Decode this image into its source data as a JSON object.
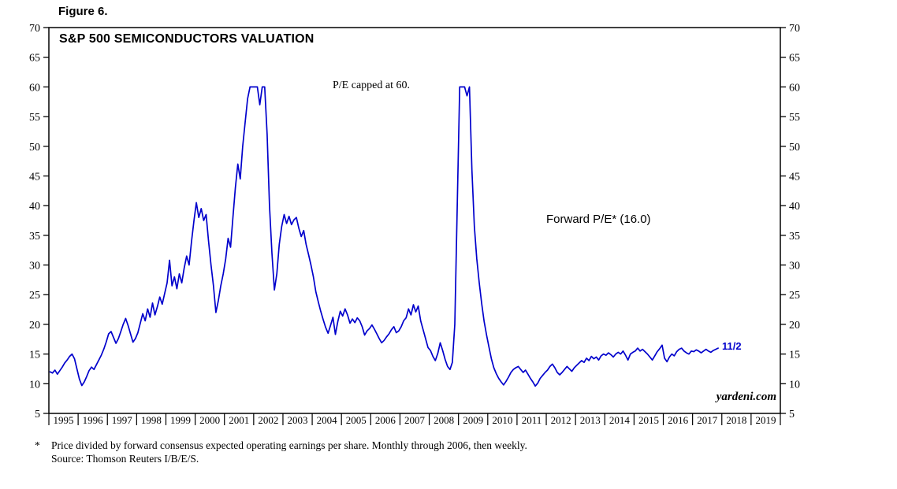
{
  "figure_label": "Figure 6.",
  "chart_title": "S&P 500 SEMICONDUCTORS VALUATION",
  "annotations": {
    "pe_cap": "P/E capped at 60.",
    "series_label": "Forward P/E* (16.0)",
    "latest_point": "11/2",
    "watermark": "yardeni.com"
  },
  "footnote": {
    "marker": "*",
    "line1": "Price divided by forward consensus expected operating earnings per share. Monthly through 2006, then weekly.",
    "line2": "Source: Thomson Reuters I/B/E/S."
  },
  "colors": {
    "line": "#0000cc",
    "latest_label": "#0000cc",
    "axis": "#000000",
    "background": "#ffffff"
  },
  "chart_data": {
    "type": "line",
    "title": "S&P 500 SEMICONDUCTORS VALUATION",
    "series_name": "Forward P/E",
    "latest_value": 16.0,
    "latest_date_label": "11/2",
    "pe_cap": 60,
    "ylim": [
      5,
      70
    ],
    "xlim": [
      1995,
      2020
    ],
    "y_ticks": [
      5,
      10,
      15,
      20,
      25,
      30,
      35,
      40,
      45,
      50,
      55,
      60,
      65,
      70
    ],
    "x_tick_labels": [
      "1995",
      "1996",
      "1997",
      "1998",
      "1999",
      "2000",
      "2001",
      "2002",
      "2003",
      "2004",
      "2005",
      "2006",
      "2007",
      "2008",
      "2009",
      "2010",
      "2011",
      "2012",
      "2013",
      "2014",
      "2015",
      "2016",
      "2017",
      "2018",
      "2019"
    ],
    "frequency": "monthly estimates read from plot, values capped at 60",
    "x_start_year": 1995,
    "values": [
      12.0,
      11.8,
      12.3,
      11.6,
      12.2,
      12.8,
      13.5,
      14.0,
      14.6,
      15.0,
      14.2,
      12.5,
      10.8,
      9.7,
      10.3,
      11.2,
      12.2,
      12.8,
      12.4,
      13.2,
      14.0,
      14.8,
      15.8,
      17.0,
      18.4,
      18.8,
      17.8,
      16.8,
      17.6,
      18.8,
      20.0,
      21.0,
      19.8,
      18.4,
      17.0,
      17.6,
      18.6,
      20.2,
      21.8,
      20.6,
      22.6,
      21.2,
      23.6,
      21.6,
      23.0,
      24.6,
      23.4,
      25.2,
      27.0,
      30.8,
      26.5,
      28.0,
      26.0,
      28.5,
      27.0,
      29.5,
      31.5,
      30.0,
      34.0,
      37.5,
      40.5,
      38.0,
      39.5,
      37.5,
      38.5,
      34.0,
      30.0,
      26.5,
      22.0,
      24.0,
      26.5,
      28.5,
      31.0,
      34.5,
      33.0,
      38.0,
      43.0,
      47.0,
      44.5,
      50.0,
      54.0,
      58.0,
      60.0,
      60.0,
      60.0,
      60.0,
      57.0,
      60.0,
      60.0,
      52.0,
      40.0,
      32.0,
      25.8,
      28.5,
      33.5,
      36.5,
      38.5,
      37.0,
      38.2,
      36.8,
      37.6,
      38.0,
      36.2,
      34.8,
      35.8,
      33.5,
      31.8,
      30.0,
      28.0,
      25.5,
      23.8,
      22.2,
      20.8,
      19.5,
      18.5,
      19.8,
      21.2,
      18.3,
      20.5,
      22.2,
      21.4,
      22.6,
      21.6,
      20.2,
      20.9,
      20.3,
      21.1,
      20.6,
      19.6,
      18.2,
      18.9,
      19.3,
      19.9,
      19.2,
      18.4,
      17.6,
      16.9,
      17.3,
      17.9,
      18.4,
      19.1,
      19.6,
      18.6,
      18.9,
      19.6,
      20.6,
      21.1,
      22.6,
      21.6,
      23.3,
      22.1,
      23.1,
      20.6,
      19.1,
      17.6,
      16.1,
      15.6,
      14.6,
      13.9,
      15.1,
      16.9,
      15.6,
      14.1,
      12.9,
      12.4,
      13.6,
      20.0,
      40.0,
      60.0,
      60.0,
      60.0,
      58.5,
      60.0,
      46.0,
      36.5,
      31.0,
      27.0,
      23.5,
      20.5,
      18.2,
      16.2,
      14.2,
      12.7,
      11.7,
      10.9,
      10.3,
      9.8,
      10.4,
      11.1,
      11.9,
      12.4,
      12.7,
      12.9,
      12.4,
      11.9,
      12.3,
      11.6,
      10.9,
      10.3,
      9.6,
      10.1,
      10.9,
      11.4,
      11.9,
      12.3,
      12.9,
      13.3,
      12.7,
      11.9,
      11.5,
      11.9,
      12.4,
      12.9,
      12.5,
      12.1,
      12.7,
      13.1,
      13.5,
      13.9,
      13.6,
      14.3,
      13.9,
      14.6,
      14.2,
      14.5,
      14.0,
      14.7,
      15.0,
      14.8,
      15.2,
      14.9,
      14.5,
      15.0,
      15.3,
      15.0,
      15.5,
      14.8,
      14.0,
      15.0,
      15.3,
      15.5,
      16.0,
      15.5,
      15.8,
      15.4,
      15.0,
      14.5,
      14.0,
      14.7,
      15.4,
      15.9,
      16.5,
      14.3,
      13.7,
      14.5,
      15.0,
      14.7,
      15.4,
      15.8,
      16.0,
      15.5,
      15.2,
      15.0,
      15.5,
      15.4,
      15.7,
      15.5,
      15.2,
      15.5,
      15.8,
      15.5,
      15.3,
      15.6,
      15.8,
      16.0
    ]
  }
}
